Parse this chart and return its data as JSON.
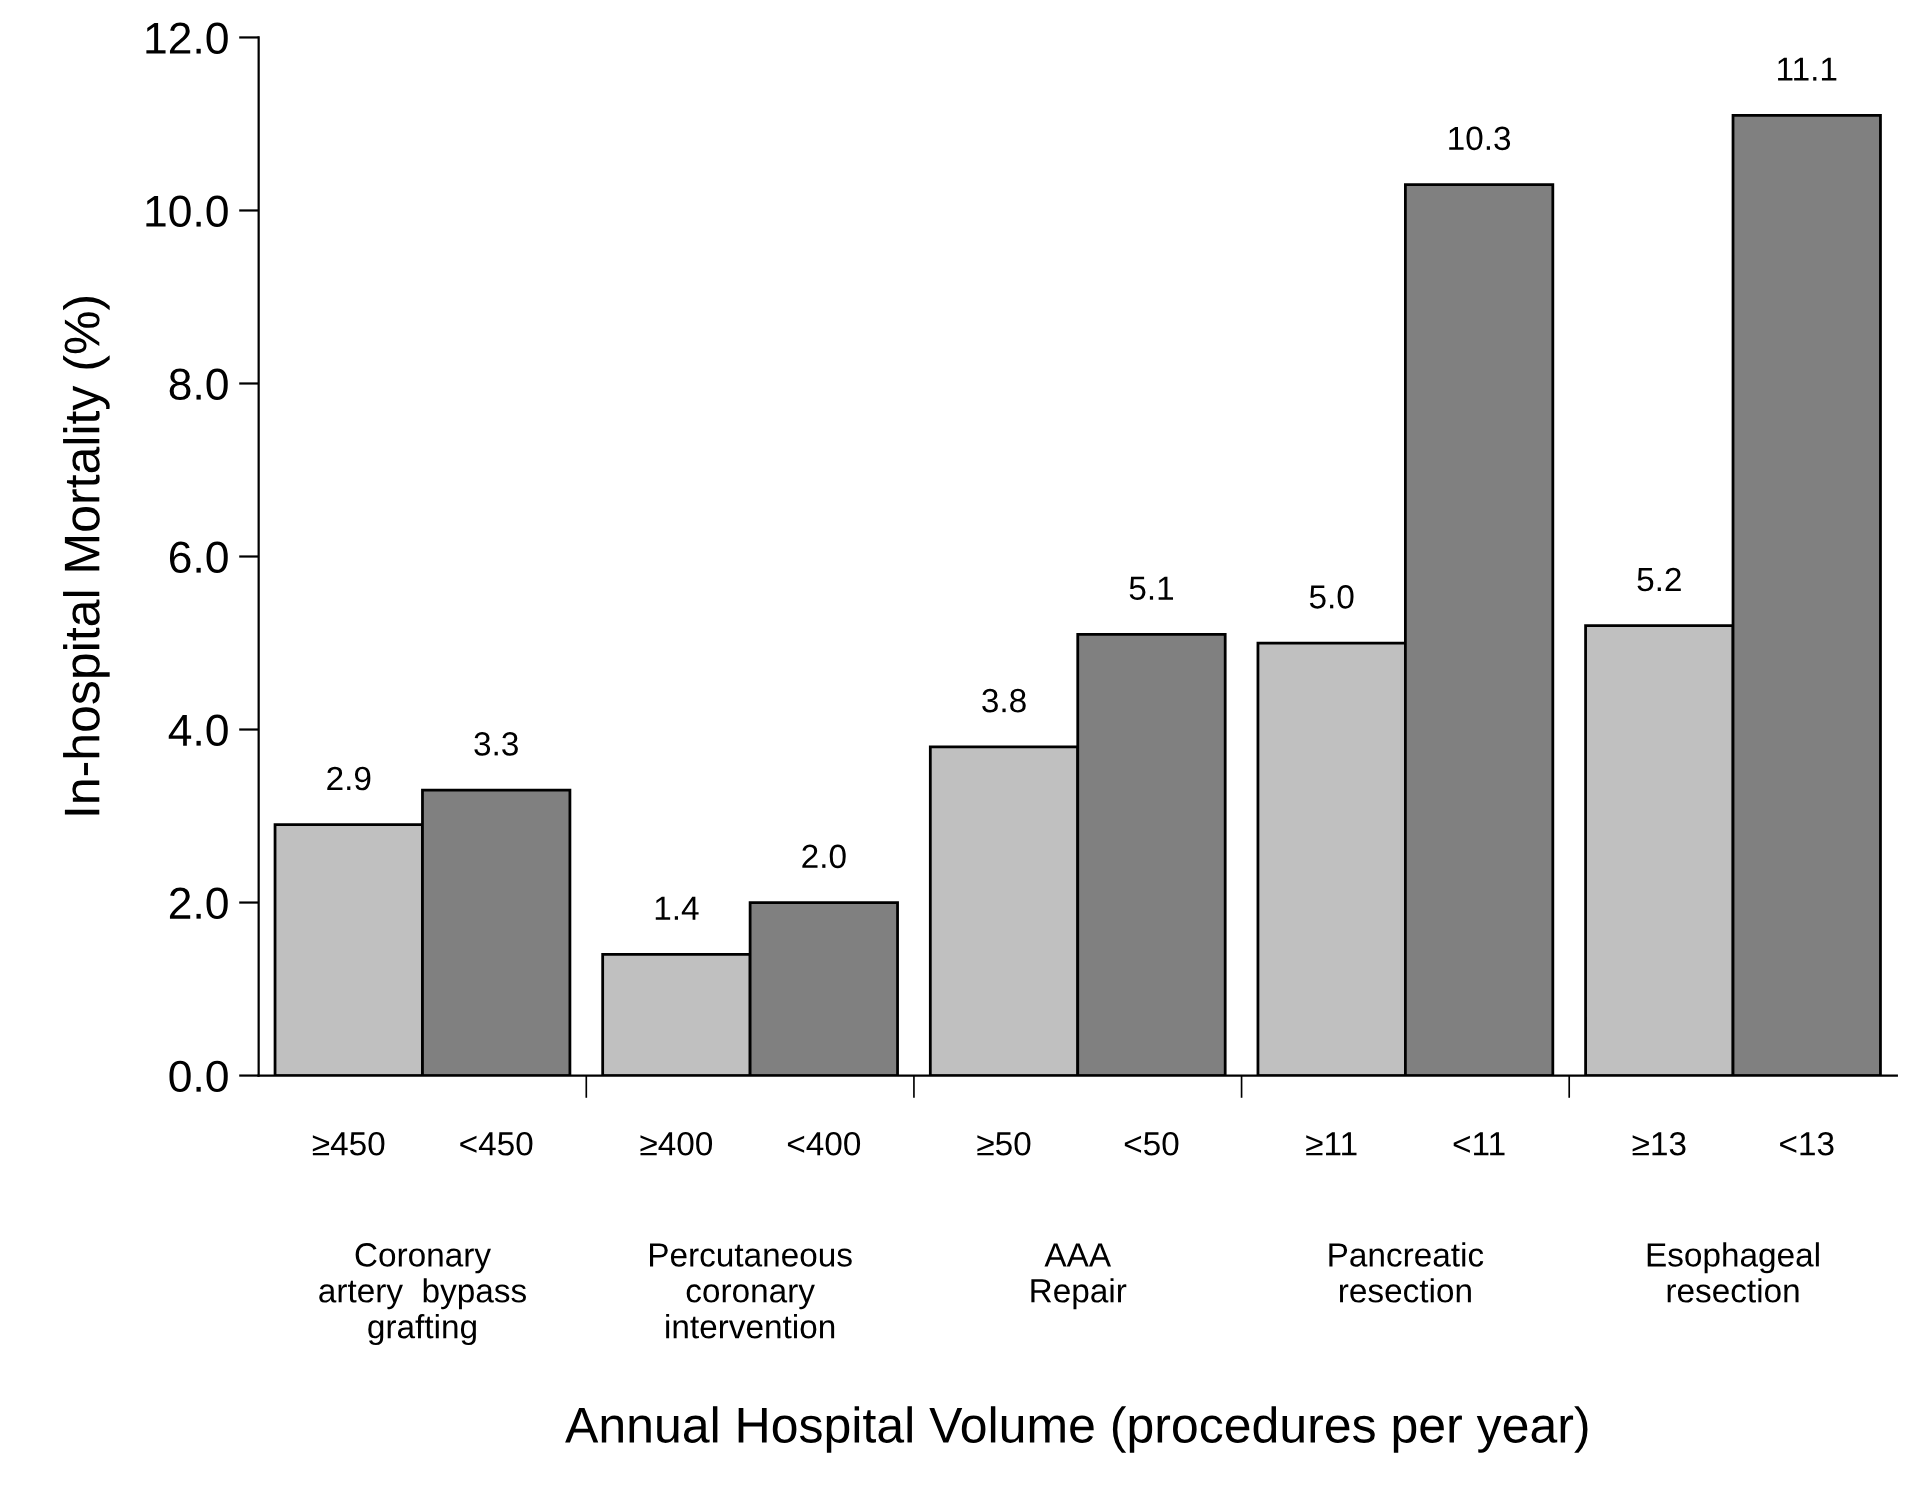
{
  "chart_data": {
    "type": "bar",
    "xlabel": "Annual Hospital Volume (procedures per year)",
    "ylabel": "In-hospital Mortality (%)",
    "categories": [
      "Coronary\nartery  bypass\ngrafting",
      "Percutaneous\ncoronary\nintervention",
      "AAA\nRepair",
      "Pancreatic\nresection",
      "Esophageal\nresection"
    ],
    "series": [
      {
        "color": "#c0c0c0",
        "values": [
          2.9,
          1.4,
          3.8,
          5.0,
          5.2
        ],
        "value_labels": [
          "2.9",
          "1.4",
          "3.8",
          "5.0",
          "5.2"
        ]
      },
      {
        "color": "#808080",
        "values": [
          3.3,
          2.0,
          5.1,
          10.3,
          11.1
        ],
        "value_labels": [
          "3.3",
          "2.0",
          "5.1",
          "10.3",
          "11.1"
        ]
      }
    ],
    "annotations": [
      "≥450",
      "<450",
      "≥400",
      "<400",
      "≥50",
      "<50",
      "≥11",
      "<11",
      "≥13",
      "<13"
    ],
    "ylim": [
      0,
      12
    ],
    "yticks": [
      {
        "value": 0,
        "label": "0.0"
      },
      {
        "value": 2,
        "label": "2.0"
      },
      {
        "value": 4,
        "label": "4.0"
      },
      {
        "value": 6,
        "label": "6.0"
      },
      {
        "value": 8,
        "label": "8.0"
      },
      {
        "value": 10,
        "label": "10.0"
      },
      {
        "value": 12,
        "label": "12.0"
      }
    ],
    "grid": false
  }
}
